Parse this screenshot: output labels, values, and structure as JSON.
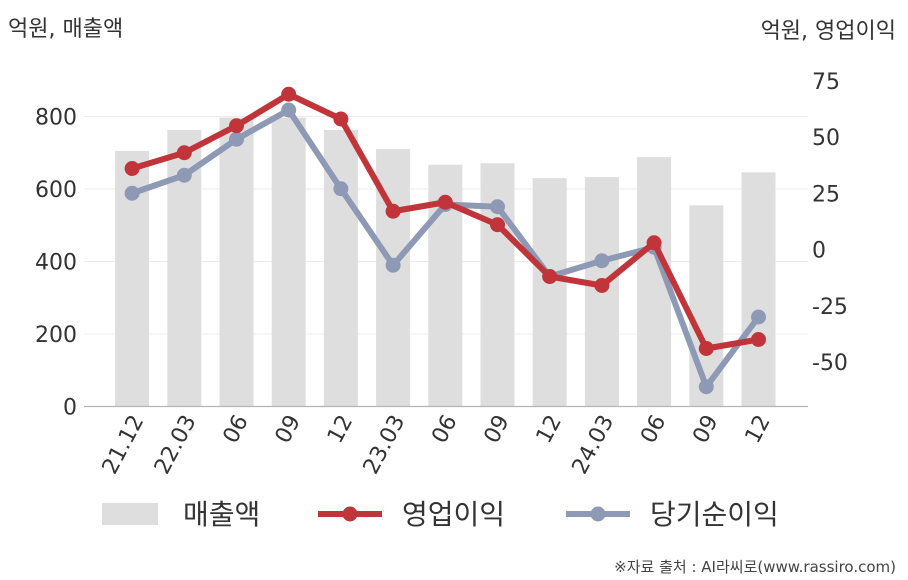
{
  "chart_data": {
    "type": "bar+line",
    "left_axis_label": "억원, 매출액",
    "right_axis_label": "억원, 영업이익",
    "categories": [
      "21.12",
      "22.03",
      "06",
      "09",
      "12",
      "23.03",
      "06",
      "09",
      "12",
      "24.03",
      "06",
      "09",
      "12"
    ],
    "left_ylim": [
      0,
      900
    ],
    "left_ticks": [
      "0",
      "200",
      "400",
      "600",
      "800"
    ],
    "right_ylim": [
      -70,
      80
    ],
    "right_ticks": [
      "75",
      "50",
      "25",
      "0",
      "-25",
      "-50"
    ],
    "series": [
      {
        "name": "매출액",
        "type": "bar",
        "axis": "left",
        "color": "#dedede",
        "values": [
          705,
          763,
          797,
          797,
          763,
          710,
          667,
          671,
          630,
          633,
          688,
          555,
          646
        ]
      },
      {
        "name": "영업이익",
        "type": "line",
        "axis": "right",
        "color": "#c0343a",
        "values": [
          36,
          43,
          55,
          69,
          58,
          17,
          21,
          11,
          -12,
          -16,
          3,
          -44,
          -40
        ]
      },
      {
        "name": "당기순이익",
        "type": "line",
        "axis": "right",
        "color": "#8e9ab5",
        "values": [
          25,
          33,
          49,
          62,
          27,
          -7,
          20,
          19,
          -12,
          -5,
          1,
          -61,
          -30
        ]
      }
    ],
    "grid": true,
    "legend": "bottom"
  },
  "source": "※자료 출처 : AI라씨로(www.rassiro.com)"
}
